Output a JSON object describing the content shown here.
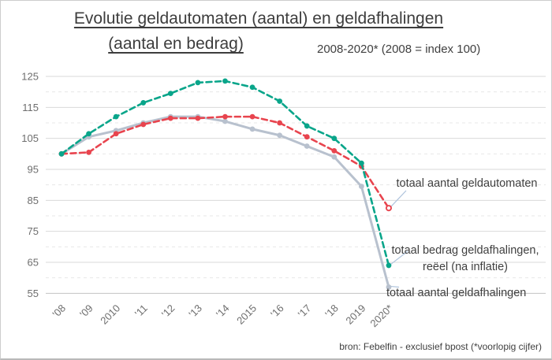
{
  "title": {
    "line1": "Evolutie geldautomaten (aantal) en geldafhalingen",
    "line2": "(aantal en bedrag)",
    "subtitle": "2008-2020* (2008 = index 100)"
  },
  "source": "bron: Febelfin - exclusief bpost (*voorlopig cijfer)",
  "colors": {
    "atm_red": "#e8444e",
    "amount_teal": "#09a58a",
    "withdrawals_gray": "#b8c1ce",
    "leader_line": "#aec3dc",
    "axis_text": "#6e6e6e",
    "annotation_text": "#3f3f3f",
    "grid_major": "#d9d9d9",
    "grid_minor": "#e7e7e7"
  },
  "chart_data": {
    "type": "line",
    "title": "Evolutie geldautomaten (aantal) en geldafhalingen (aantal en bedrag)",
    "subtitle": "2008-2020* (2008 = index 100)",
    "x_labels": [
      "'08",
      "'09",
      "2010",
      "'11",
      "'12",
      "'13",
      "'14",
      "2015",
      "'16",
      "'17",
      "'18",
      "2019",
      "2020*"
    ],
    "years": [
      2008,
      2009,
      2010,
      2011,
      2012,
      2013,
      2014,
      2015,
      2016,
      2017,
      2018,
      2019,
      2020
    ],
    "ylim": [
      55,
      125
    ],
    "y_major_ticks": [
      125,
      115,
      105,
      95,
      85,
      75,
      65,
      55
    ],
    "y_minor_gridlines": [
      120,
      110,
      100,
      90,
      80,
      70,
      60
    ],
    "grid": "horizontal-only",
    "legend_position": "right-annotations",
    "series": [
      {
        "name": "totaal aantal geldautomaten",
        "label_lines": [
          "totaal aantal geldautomaten"
        ],
        "color": "#e8444e",
        "style": "dashed",
        "marker": "circle",
        "last_marker": "open-circle",
        "values": [
          100,
          100.5,
          106.5,
          109.5,
          111.5,
          111.5,
          112,
          112,
          110,
          105.5,
          101,
          96,
          82.5
        ]
      },
      {
        "name": "totaal bedrag geldafhalingen, reëel (na inflatie)",
        "label_lines": [
          "totaal bedrag geldafhalingen,",
          "reëel (na inflatie)"
        ],
        "color": "#09a58a",
        "style": "dashed",
        "marker": "circle",
        "last_marker": "circle",
        "values": [
          100,
          106.5,
          112,
          116.5,
          119.5,
          123,
          123.5,
          121.5,
          117,
          109,
          105,
          97,
          64
        ]
      },
      {
        "name": "totaal aantal geldafhalingen",
        "label_lines": [
          "totaal aantal geldafhalingen"
        ],
        "color": "#b8c1ce",
        "style": "solid",
        "marker": "circle",
        "last_marker": "circle",
        "values": [
          100,
          105.5,
          107.5,
          110,
          112,
          112,
          110.5,
          108,
          106,
          102.5,
          99,
          89.5,
          57
        ]
      }
    ]
  }
}
